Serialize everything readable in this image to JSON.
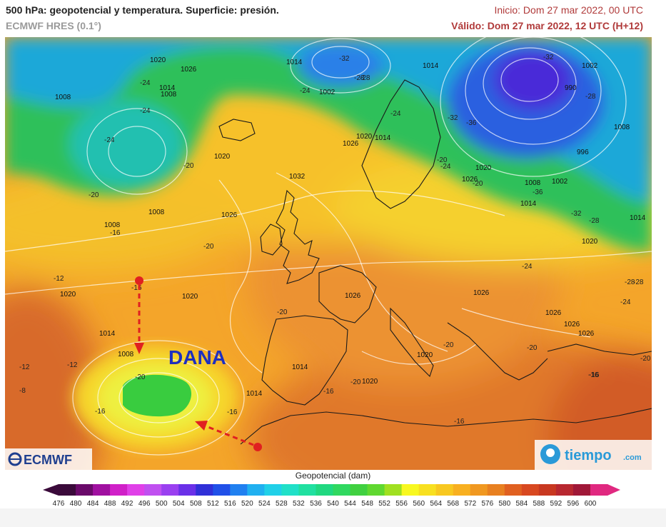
{
  "header": {
    "title": "500 hPa: geopotencial y temperatura. Superficie: presión.",
    "model": "ECMWF HRES (0.1°)",
    "init": "Inicio: Dom 27 mar 2022, 00 UTC",
    "valid": "Válido: Dom 27 mar 2022, 12 UTC (H+12)"
  },
  "map": {
    "annotation": "DANA",
    "logo_left": "ECMWF",
    "logo_right": "tiempo",
    "logo_right_suffix": ".com",
    "pressure_labels": [
      {
        "text": "1020"
      },
      {
        "text": "1026"
      },
      {
        "text": "1014"
      },
      {
        "text": "1008"
      },
      {
        "text": "1008"
      },
      {
        "text": "1014"
      },
      {
        "text": "1002"
      },
      {
        "text": "1014"
      },
      {
        "text": "1002"
      },
      {
        "text": "990"
      },
      {
        "text": "1008"
      },
      {
        "text": "1020"
      },
      {
        "text": "1014"
      },
      {
        "text": "1026"
      },
      {
        "text": "1020"
      },
      {
        "text": "1032"
      },
      {
        "text": "1026"
      },
      {
        "text": "1020"
      },
      {
        "text": "1026"
      },
      {
        "text": "1008"
      },
      {
        "text": "1002"
      },
      {
        "text": "996"
      },
      {
        "text": "1014"
      },
      {
        "text": "1014"
      },
      {
        "text": "1008"
      },
      {
        "text": "1020"
      },
      {
        "text": "1020"
      },
      {
        "text": "1014"
      },
      {
        "text": "1008"
      },
      {
        "text": "1026"
      },
      {
        "text": "1026"
      },
      {
        "text": "1026"
      },
      {
        "text": "1026"
      },
      {
        "text": "1020"
      },
      {
        "text": "1020"
      },
      {
        "text": "1014"
      },
      {
        "text": "1020"
      },
      {
        "text": "1026"
      },
      {
        "text": "1014"
      },
      {
        "text": "1008"
      }
    ],
    "temperature_labels": [
      {
        "text": "-24"
      },
      {
        "text": "-24"
      },
      {
        "text": "-24"
      },
      {
        "text": "-24"
      },
      {
        "text": "-32"
      },
      {
        "text": "-28"
      },
      {
        "text": "-32"
      },
      {
        "text": "-28"
      },
      {
        "text": "-32"
      },
      {
        "text": "-36"
      },
      {
        "text": "-20"
      },
      {
        "text": "-20"
      },
      {
        "text": "-16"
      },
      {
        "text": "-20"
      },
      {
        "text": "-12"
      },
      {
        "text": "-16"
      },
      {
        "text": "-12"
      },
      {
        "text": "-8"
      },
      {
        "text": "-16"
      },
      {
        "text": "-20"
      },
      {
        "text": "-16"
      },
      {
        "text": "-16"
      },
      {
        "text": "-20"
      },
      {
        "text": "-16"
      },
      {
        "text": "-20"
      },
      {
        "text": "-20"
      },
      {
        "text": "-20"
      },
      {
        "text": "-24"
      },
      {
        "text": "-20"
      },
      {
        "text": "-28"
      },
      {
        "text": "-28"
      },
      {
        "text": "-24"
      },
      {
        "text": "-16"
      },
      {
        "text": "-20"
      },
      {
        "text": "-36"
      },
      {
        "text": "-32"
      },
      {
        "text": "-28"
      },
      {
        "text": "-24"
      },
      {
        "text": "-28"
      },
      {
        "text": "-24"
      },
      {
        "text": "-16"
      },
      {
        "text": "-20"
      },
      {
        "text": "-12"
      }
    ]
  },
  "legend": {
    "title": "Geopotencial (dam)",
    "ticks": [
      "476",
      "480",
      "484",
      "488",
      "492",
      "496",
      "500",
      "504",
      "508",
      "512",
      "516",
      "520",
      "524",
      "528",
      "532",
      "536",
      "540",
      "544",
      "548",
      "552",
      "556",
      "560",
      "564",
      "568",
      "572",
      "576",
      "580",
      "584",
      "588",
      "592",
      "596",
      "600"
    ],
    "colors": [
      "#3a0a3a",
      "#6a0a6a",
      "#a010a0",
      "#d020c8",
      "#e040e8",
      "#c050f0",
      "#9a40f0",
      "#6a30e8",
      "#3030d8",
      "#2050e8",
      "#2080f0",
      "#20b0f0",
      "#20d0e8",
      "#20e0c8",
      "#20e0a0",
      "#20d880",
      "#30d860",
      "#40d040",
      "#60d830",
      "#a0e020",
      "#f8f820",
      "#f8e020",
      "#f8c820",
      "#f8b020",
      "#f09820",
      "#e88020",
      "#e06020",
      "#d84820",
      "#c83820",
      "#b82830",
      "#a01838",
      "#e02880"
    ]
  }
}
